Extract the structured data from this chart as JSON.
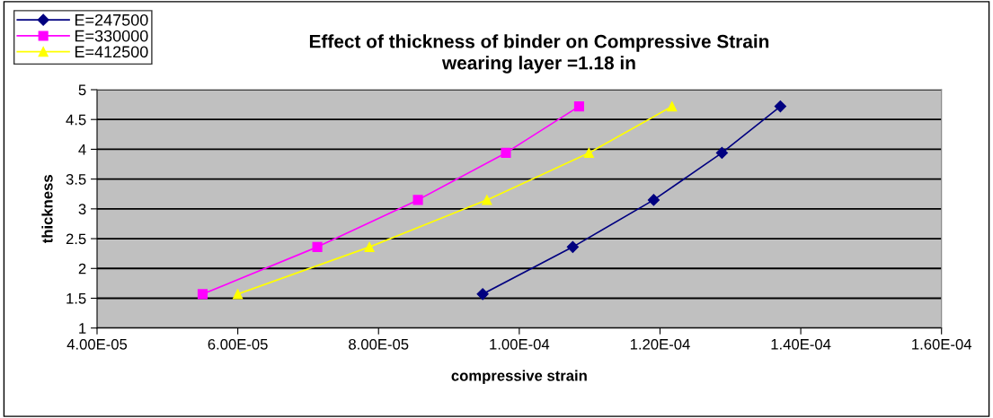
{
  "chart_data": {
    "type": "line",
    "title": "Effect of thickness of binder on Compressive Strain\nwearing layer =1.18 in",
    "xlabel": "compressive strain",
    "ylabel": "thickness",
    "series": [
      {
        "name": "E=247500",
        "color": "#000080",
        "marker": "diamond",
        "x": [
          9.48e-05,
          0.0001076,
          0.0001191,
          0.0001288,
          0.0001371
        ],
        "values": [
          1.57,
          2.36,
          3.15,
          3.94,
          4.72
        ]
      },
      {
        "name": "E=330000",
        "color": "#ff00ff",
        "marker": "square",
        "x": [
          5.5e-05,
          7.13e-05,
          8.56e-05,
          9.81e-05,
          0.0001085
        ],
        "values": [
          1.57,
          2.36,
          3.15,
          3.94,
          4.72
        ]
      },
      {
        "name": "E=412500",
        "color": "#ffff00",
        "marker": "triangle",
        "x": [
          6e-05,
          7.87e-05,
          9.54e-05,
          0.0001099,
          0.0001217
        ],
        "values": [
          1.57,
          2.36,
          3.15,
          3.94,
          4.72
        ]
      }
    ],
    "xlim": [
      4e-05,
      0.00016
    ],
    "xticks": [
      {
        "value": 4e-05,
        "label": "4.00E-05"
      },
      {
        "value": 6e-05,
        "label": "6.00E-05"
      },
      {
        "value": 8e-05,
        "label": "8.00E-05"
      },
      {
        "value": 0.0001,
        "label": "1.00E-04"
      },
      {
        "value": 0.00012,
        "label": "1.20E-04"
      },
      {
        "value": 0.00014,
        "label": "1.40E-04"
      },
      {
        "value": 0.00016,
        "label": "1.60E-04"
      }
    ],
    "ylim": [
      1,
      5
    ],
    "yticks": [
      1,
      1.5,
      2,
      2.5,
      3,
      3.5,
      4,
      4.5,
      5
    ],
    "grid": "y",
    "legend": "top left",
    "line_style": "solid"
  }
}
